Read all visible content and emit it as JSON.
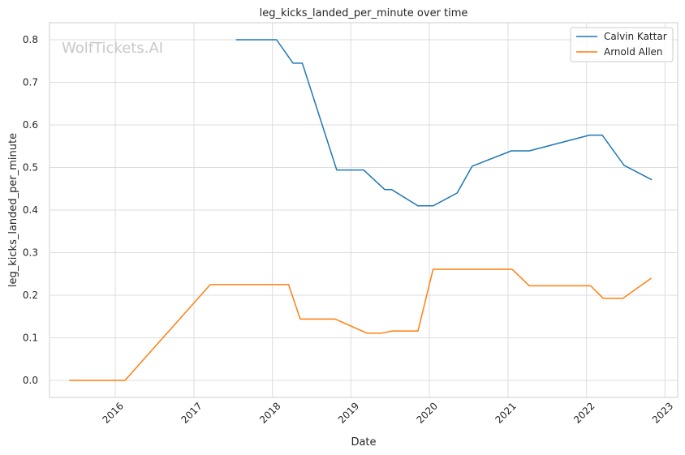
{
  "chart_data": {
    "type": "line",
    "title": "leg_kicks_landed_per_minute over time",
    "xlabel": "Date",
    "ylabel": "leg_kicks_landed_per_minute",
    "watermark": "WolfTickets.AI",
    "xlim": [
      "2015-03-01",
      "2023-03-01"
    ],
    "ylim": [
      -0.04,
      0.84
    ],
    "x_ticks": [
      "2016-01-01",
      "2017-01-01",
      "2018-01-01",
      "2019-01-01",
      "2020-01-01",
      "2021-01-01",
      "2022-01-01",
      "2023-01-01"
    ],
    "x_tick_labels": [
      "2016",
      "2017",
      "2018",
      "2019",
      "2020",
      "2021",
      "2022",
      "2023"
    ],
    "y_ticks": [
      0.0,
      0.1,
      0.2,
      0.3,
      0.4,
      0.5,
      0.6,
      0.7,
      0.8
    ],
    "y_tick_labels": [
      "0.0",
      "0.1",
      "0.2",
      "0.3",
      "0.4",
      "0.5",
      "0.6",
      "0.7",
      "0.8"
    ],
    "grid": true,
    "legend_position": "top-right",
    "series": [
      {
        "name": "Calvin Kattar",
        "color": "#1f77b4",
        "points": [
          [
            "2017-07-15",
            0.8
          ],
          [
            "2018-01-20",
            0.8
          ],
          [
            "2018-04-07",
            0.745
          ],
          [
            "2018-05-20",
            0.745
          ],
          [
            "2018-10-27",
            0.494
          ],
          [
            "2019-03-01",
            0.494
          ],
          [
            "2019-06-08",
            0.448
          ],
          [
            "2019-07-10",
            0.448
          ],
          [
            "2019-11-09",
            0.41
          ],
          [
            "2020-01-18",
            0.41
          ],
          [
            "2020-05-09",
            0.44
          ],
          [
            "2020-07-18",
            0.503
          ],
          [
            "2021-01-16",
            0.539
          ],
          [
            "2021-04-10",
            0.539
          ],
          [
            "2022-01-15",
            0.576
          ],
          [
            "2022-03-15",
            0.576
          ],
          [
            "2022-06-25",
            0.505
          ],
          [
            "2022-11-01",
            0.471
          ]
        ]
      },
      {
        "name": "Arnold Allen",
        "color": "#ff7f0e",
        "points": [
          [
            "2015-06-01",
            0.0
          ],
          [
            "2016-02-15",
            0.0
          ],
          [
            "2017-03-18",
            0.225
          ],
          [
            "2018-03-17",
            0.225
          ],
          [
            "2018-05-10",
            0.144
          ],
          [
            "2018-10-20",
            0.144
          ],
          [
            "2019-03-16",
            0.111
          ],
          [
            "2019-05-25",
            0.111
          ],
          [
            "2019-07-13",
            0.116
          ],
          [
            "2019-11-09",
            0.116
          ],
          [
            "2020-01-18",
            0.261
          ],
          [
            "2021-01-20",
            0.261
          ],
          [
            "2021-04-10",
            0.222
          ],
          [
            "2022-01-20",
            0.222
          ],
          [
            "2022-03-19",
            0.193
          ],
          [
            "2022-06-20",
            0.193
          ],
          [
            "2022-10-29",
            0.24
          ]
        ]
      }
    ]
  }
}
